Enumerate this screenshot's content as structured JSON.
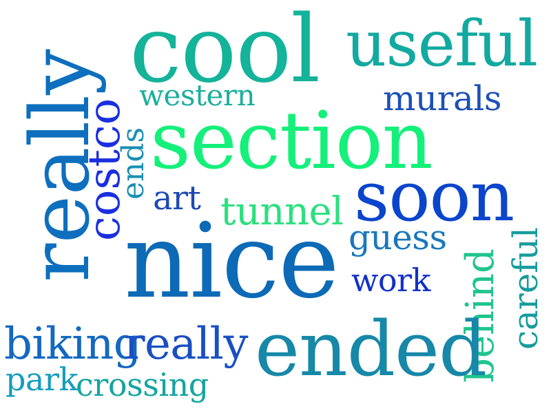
{
  "words": [
    {
      "id": "cool",
      "text": "cool",
      "color": "#14b39a"
    },
    {
      "id": "useful",
      "text": "useful",
      "color": "#12a9a0"
    },
    {
      "id": "western",
      "text": "western",
      "color": "#1cae9c"
    },
    {
      "id": "murals",
      "text": "murals",
      "color": "#1d4fb8"
    },
    {
      "id": "section",
      "text": "section",
      "color": "#14f07a"
    },
    {
      "id": "really",
      "text": "really",
      "color": "#0d6fbd"
    },
    {
      "id": "costco",
      "text": "costco",
      "color": "#1a2fe0"
    },
    {
      "id": "ends",
      "text": "ends",
      "color": "#1a8fb3"
    },
    {
      "id": "soon",
      "text": "soon",
      "color": "#0a45cc"
    },
    {
      "id": "art",
      "text": "art",
      "color": "#1d49b3"
    },
    {
      "id": "tunnel",
      "text": "tunnel",
      "color": "#2be07e"
    },
    {
      "id": "guess",
      "text": "guess",
      "color": "#1877bd"
    },
    {
      "id": "nice",
      "text": "nice",
      "color": "#0c6ab6"
    },
    {
      "id": "work",
      "text": "work",
      "color": "#1130c9"
    },
    {
      "id": "behind",
      "text": "behind",
      "color": "#1fc58c"
    },
    {
      "id": "careful",
      "text": "careful",
      "color": "#169c9c"
    },
    {
      "id": "biking",
      "text": "biking",
      "color": "#1468c0"
    },
    {
      "id": "really2",
      "text": "really",
      "color": "#1a4fc2"
    },
    {
      "id": "ended",
      "text": "ended",
      "color": "#1788a8"
    },
    {
      "id": "park",
      "text": "park",
      "color": "#149dbc"
    },
    {
      "id": "crossing",
      "text": "crossing",
      "color": "#14a4a0"
    }
  ]
}
